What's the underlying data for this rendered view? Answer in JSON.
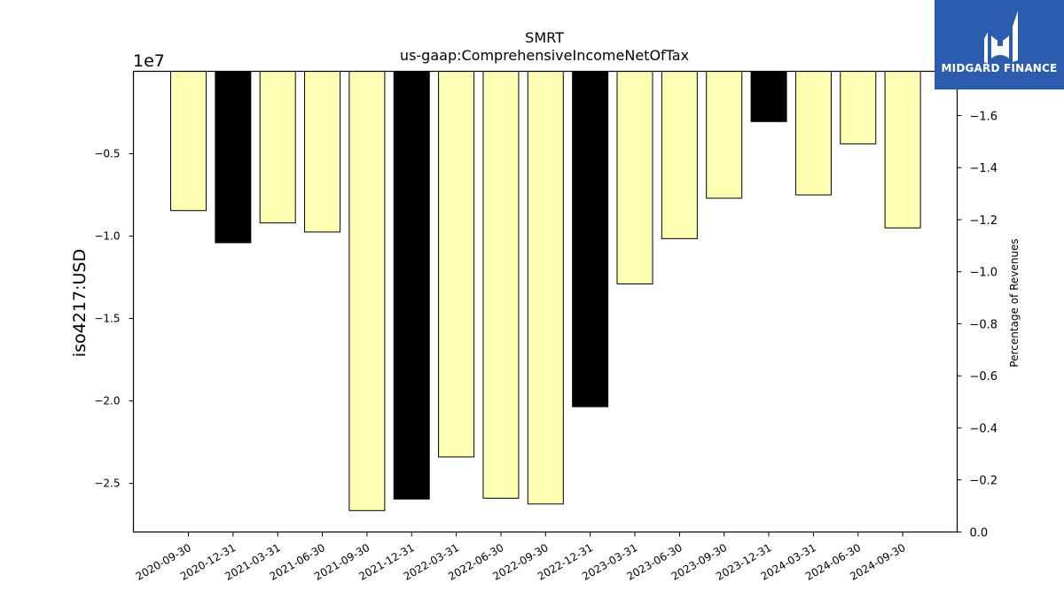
{
  "chart_data": {
    "type": "bar",
    "title": "SMRT",
    "subtitle": "us-gaap:ComprehensiveIncomeNetOfTax",
    "ylabel": "iso4217:USD",
    "y_offset_label": "1e7",
    "y2label": "Percentage of Revenues",
    "categories": [
      "2020-09-30",
      "2020-12-31",
      "2021-03-31",
      "2021-06-30",
      "2021-09-30",
      "2021-12-31",
      "2022-03-31",
      "2022-06-30",
      "2022-09-30",
      "2022-12-31",
      "2023-03-31",
      "2023-06-30",
      "2023-09-30",
      "2023-12-31",
      "2024-03-31",
      "2024-06-30",
      "2024-09-30"
    ],
    "values": [
      -8450000,
      -10400000,
      -9200000,
      -9750000,
      -26650000,
      -25950000,
      -23400000,
      -25900000,
      -26250000,
      -20350000,
      -12900000,
      -10150000,
      -7700000,
      -3050000,
      -7500000,
      -4400000,
      -9500000
    ],
    "bar_colors": [
      "#ffffb3",
      "#000000",
      "#ffffb3",
      "#ffffb3",
      "#ffffb3",
      "#000000",
      "#ffffb3",
      "#ffffb3",
      "#ffffb3",
      "#000000",
      "#ffffb3",
      "#ffffb3",
      "#ffffb3",
      "#000000",
      "#ffffb3",
      "#ffffb3",
      "#ffffb3"
    ],
    "ylim": [
      -27950000,
      0
    ],
    "yticks": [
      -5000000,
      -10000000,
      -15000000,
      -20000000,
      -25000000
    ],
    "ytick_labels": [
      "−0.5",
      "−1.0",
      "−1.5",
      "−2.0",
      "−2.5"
    ],
    "y2lim": [
      0,
      -1.77
    ],
    "y2ticks": [
      0,
      -0.2,
      -0.4,
      -0.6,
      -0.8,
      -1.0,
      -1.2,
      -1.4,
      -1.6
    ],
    "y2tick_labels": [
      "0.0",
      "−0.2",
      "−0.4",
      "−0.6",
      "−0.8",
      "−1.0",
      "−1.2",
      "−1.4",
      "−1.6"
    ],
    "grid": false
  },
  "logo": {
    "text": "MIDGARD FINANCE"
  }
}
